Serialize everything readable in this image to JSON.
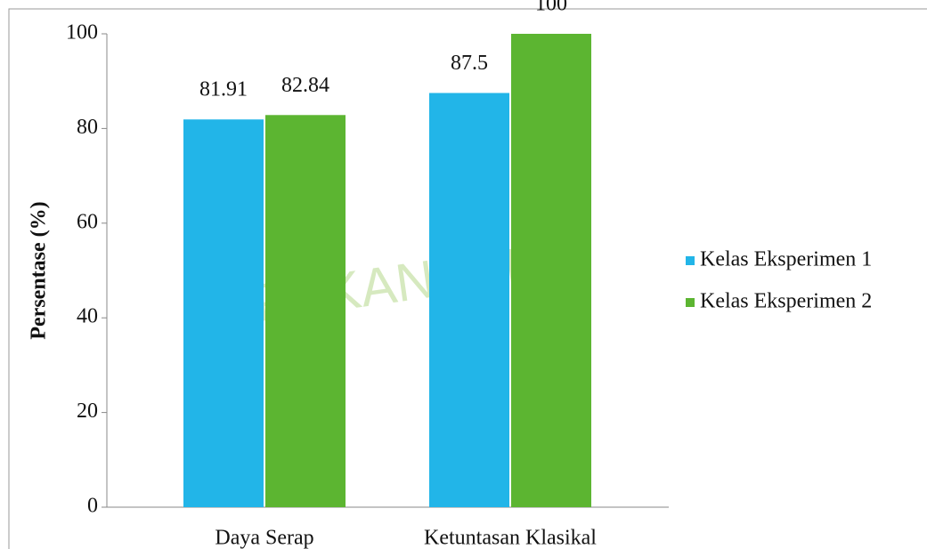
{
  "chart_data": {
    "type": "bar",
    "watermark": "PEKANBARU",
    "y_label": "Persentase (%)",
    "categories": [
      "Daya Serap",
      "Ketuntasan Klasikal"
    ],
    "series": [
      {
        "name": "Kelas Eksperimen 1",
        "color": "#22b5e8",
        "values": [
          81.91,
          87.5
        ]
      },
      {
        "name": "Kelas Eksperimen 2",
        "color": "#5cb531",
        "values": [
          82.84,
          100
        ]
      }
    ],
    "ylim": [
      0,
      100
    ],
    "yticks": [
      0,
      20,
      40,
      60,
      80,
      100
    ],
    "grid": false,
    "legend": "right"
  }
}
